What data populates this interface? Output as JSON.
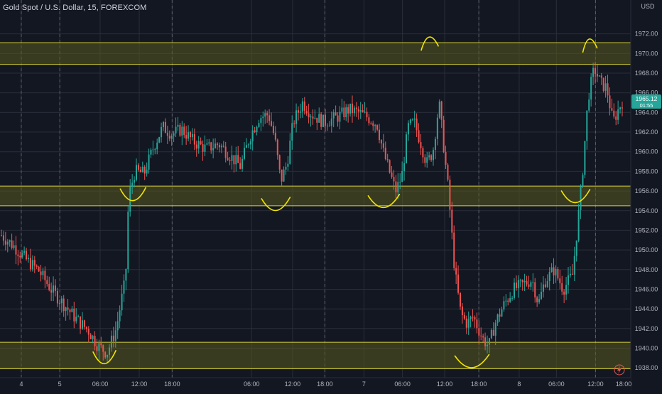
{
  "header": {
    "title": "Gold Spot / U.S. Dollar, 15, FOREXCOM",
    "currency": "USD",
    "price_badge": "1965.12",
    "badge_sub": "01:55"
  },
  "colors": {
    "background": "#131722",
    "grid": "#2a2e39",
    "up": "#26a69a",
    "down": "#ef5350",
    "zone_fill": "#5a5a1f",
    "zone_line": "#d7d236",
    "annotation": "#f2e600",
    "axis_text": "#b2b5be",
    "session_line": "#5d606b"
  },
  "chart_data": {
    "type": "candlestick",
    "symbol": "XAUUSD",
    "interval": "15",
    "ylim": [
      1937,
      1974
    ],
    "y_ticks": [
      1938,
      1940,
      1942,
      1944,
      1946,
      1948,
      1950,
      1952,
      1954,
      1956,
      1958,
      1960,
      1962,
      1964,
      1966,
      1968,
      1970,
      1972
    ],
    "y_tick_labels": [
      "1938.00",
      "1940.00",
      "1942.00",
      "1944.00",
      "1946.00",
      "1948.00",
      "1950.00",
      "1952.00",
      "1954.00",
      "1956.00",
      "1958.00",
      "1960.00",
      "1962.00",
      "1964.00",
      "1966.00",
      "1968.00",
      "1970.00",
      "1972.00"
    ],
    "x_ticks": [
      {
        "label": "4",
        "t": 0.032
      },
      {
        "label": "5",
        "t": 0.094
      },
      {
        "label": "06:00",
        "t": 0.159
      },
      {
        "label": "12:00",
        "t": 0.222
      },
      {
        "label": "18:00",
        "t": 0.275
      },
      {
        "label": "06:00",
        "t": 0.403
      },
      {
        "label": "12:00",
        "t": 0.469
      },
      {
        "label": "18:00",
        "t": 0.521
      },
      {
        "label": "7",
        "t": 0.584
      },
      {
        "label": "06:00",
        "t": 0.646
      },
      {
        "label": "12:00",
        "t": 0.714
      },
      {
        "label": "18:00",
        "t": 0.769
      },
      {
        "label": "8",
        "t": 0.834
      },
      {
        "label": "06:00",
        "t": 0.894
      },
      {
        "label": "12:00",
        "t": 0.957
      },
      {
        "label": "18:00",
        "t": 1.0
      }
    ],
    "session_breaks": [
      0.032,
      0.094,
      0.275,
      0.521,
      0.769,
      0.957
    ],
    "zones": [
      {
        "low": 1968.9,
        "high": 1971.1
      },
      {
        "low": 1954.5,
        "high": 1956.5
      },
      {
        "low": 1937.9,
        "high": 1940.6
      }
    ],
    "price_path": [
      [
        0.0,
        1951.5
      ],
      [
        0.02,
        1950.4
      ],
      [
        0.04,
        1949.0
      ],
      [
        0.06,
        1947.9
      ],
      [
        0.08,
        1946.0
      ],
      [
        0.1,
        1944.5
      ],
      [
        0.12,
        1943.0
      ],
      [
        0.14,
        1941.8
      ],
      [
        0.155,
        1940.3
      ],
      [
        0.17,
        1939.5
      ],
      [
        0.185,
        1942.0
      ],
      [
        0.195,
        1945.5
      ],
      [
        0.2,
        1947.0
      ],
      [
        0.205,
        1955.5
      ],
      [
        0.215,
        1958.0
      ],
      [
        0.23,
        1957.8
      ],
      [
        0.245,
        1960.5
      ],
      [
        0.26,
        1962.5
      ],
      [
        0.275,
        1961.8
      ],
      [
        0.29,
        1962.3
      ],
      [
        0.31,
        1961.0
      ],
      [
        0.33,
        1960.3
      ],
      [
        0.35,
        1960.8
      ],
      [
        0.37,
        1959.5
      ],
      [
        0.385,
        1958.5
      ],
      [
        0.4,
        1961.5
      ],
      [
        0.415,
        1963.5
      ],
      [
        0.43,
        1963.8
      ],
      [
        0.44,
        1961.5
      ],
      [
        0.45,
        1957.0
      ],
      [
        0.46,
        1958.8
      ],
      [
        0.47,
        1963.0
      ],
      [
        0.485,
        1965.0
      ],
      [
        0.5,
        1963.8
      ],
      [
        0.52,
        1963.0
      ],
      [
        0.54,
        1963.5
      ],
      [
        0.56,
        1964.3
      ],
      [
        0.575,
        1964.0
      ],
      [
        0.59,
        1963.5
      ],
      [
        0.605,
        1962.8
      ],
      [
        0.615,
        1960.0
      ],
      [
        0.625,
        1958.0
      ],
      [
        0.635,
        1956.0
      ],
      [
        0.645,
        1957.5
      ],
      [
        0.655,
        1962.5
      ],
      [
        0.665,
        1963.0
      ],
      [
        0.675,
        1961.0
      ],
      [
        0.685,
        1958.8
      ],
      [
        0.695,
        1960.0
      ],
      [
        0.7,
        1962.5
      ],
      [
        0.705,
        1965.0
      ],
      [
        0.71,
        1962.0
      ],
      [
        0.72,
        1956.0
      ],
      [
        0.73,
        1948.0
      ],
      [
        0.74,
        1943.5
      ],
      [
        0.75,
        1942.5
      ],
      [
        0.76,
        1943.2
      ],
      [
        0.775,
        1941.0
      ],
      [
        0.785,
        1940.2
      ],
      [
        0.795,
        1942.5
      ],
      [
        0.81,
        1944.5
      ],
      [
        0.825,
        1946.0
      ],
      [
        0.84,
        1946.5
      ],
      [
        0.855,
        1947.0
      ],
      [
        0.865,
        1944.5
      ],
      [
        0.875,
        1946.8
      ],
      [
        0.89,
        1948.0
      ],
      [
        0.905,
        1946.0
      ],
      [
        0.92,
        1947.5
      ],
      [
        0.935,
        1957.0
      ],
      [
        0.945,
        1965.5
      ],
      [
        0.955,
        1968.5
      ],
      [
        0.965,
        1967.0
      ],
      [
        0.975,
        1966.5
      ],
      [
        0.985,
        1963.0
      ],
      [
        0.995,
        1964.5
      ],
      [
        1.0,
        1965.1
      ]
    ],
    "annotations": [
      "swing-low arc",
      "swing-low arc",
      "swing-low arc",
      "swing-low arc",
      "swing-high arc",
      "swing-low arc",
      "swing-low arc",
      "swing-high arc",
      "swing-low arc"
    ]
  }
}
